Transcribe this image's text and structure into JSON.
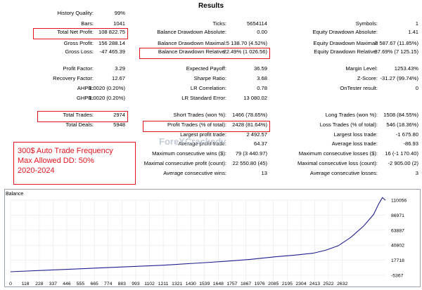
{
  "report": {
    "title": "Results"
  },
  "stats": [
    {
      "label": "History Quality:",
      "value": "99%",
      "lx": 133,
      "vx": 178,
      "y": 18
    },
    {
      "label": "Bars:",
      "value": "1041",
      "lx": 133,
      "vx": 178,
      "y": 33
    },
    {
      "label": "Total Net Profit:",
      "value": "108 822.75",
      "lx": 133,
      "vx": 178,
      "y": 45
    },
    {
      "label": "Gross Profit:",
      "value": "156 288.14",
      "lx": 133,
      "vx": 178,
      "y": 61
    },
    {
      "label": "Gross Loss:",
      "value": "-47 465.39",
      "lx": 133,
      "vx": 178,
      "y": 73
    },
    {
      "label": "Ticks:",
      "value": "5654114",
      "lx": 322,
      "vx": 380,
      "y": 33
    },
    {
      "label": "Balance Drawdown Absolute:",
      "value": "0.00",
      "lx": 322,
      "vx": 380,
      "y": 45
    },
    {
      "label": "Balance Drawdown Maximal:",
      "value": "5 138.70 (4.52%)",
      "lx": 322,
      "vx": 380,
      "y": 61
    },
    {
      "label": "Balance Drawdown Relative:",
      "value": "22.49% (1 026.56)",
      "lx": 322,
      "vx": 380,
      "y": 73
    },
    {
      "label": "Symbols:",
      "value": "1",
      "lx": 537,
      "vx": 595,
      "y": 33
    },
    {
      "label": "Equity Drawdown Absolute:",
      "value": "1.41",
      "lx": 537,
      "vx": 595,
      "y": 45
    },
    {
      "label": "Equity Drawdown Maximal:",
      "value": "8 587.67 (11.85%)",
      "lx": 537,
      "vx": 595,
      "y": 61
    },
    {
      "label": "Equity Drawdown Relative:",
      "value": "37.69% (7 125.15)",
      "lx": 537,
      "vx": 595,
      "y": 73
    },
    {
      "label": "Profit Factor:",
      "value": "3.29",
      "lx": 133,
      "vx": 178,
      "y": 97
    },
    {
      "label": "Recovery Factor:",
      "value": "12.67",
      "lx": 133,
      "vx": 178,
      "y": 111
    },
    {
      "label": "AHPR:",
      "value": "1.0020 (0.20%)",
      "lx": 133,
      "vx": 178,
      "y": 125
    },
    {
      "label": "GHPR:",
      "value": "1.0020 (0.20%)",
      "lx": 133,
      "vx": 178,
      "y": 139
    },
    {
      "label": "Expected Payoff:",
      "value": "36.59",
      "lx": 322,
      "vx": 380,
      "y": 97
    },
    {
      "label": "Sharpe Ratio:",
      "value": "3.68",
      "lx": 322,
      "vx": 380,
      "y": 111
    },
    {
      "label": "LR Correlation:",
      "value": "0.78",
      "lx": 322,
      "vx": 380,
      "y": 125
    },
    {
      "label": "LR Standard Error:",
      "value": "13 080.02",
      "lx": 322,
      "vx": 380,
      "y": 139
    },
    {
      "label": "Margin Level:",
      "value": "1253.43%",
      "lx": 537,
      "vx": 595,
      "y": 97
    },
    {
      "label": "Z-Score:",
      "value": "-31.27 (99.74%)",
      "lx": 537,
      "vx": 595,
      "y": 111
    },
    {
      "label": "OnTester result:",
      "value": "0",
      "lx": 537,
      "vx": 595,
      "y": 125
    },
    {
      "label": "Total Trades:",
      "value": "2974",
      "lx": 133,
      "vx": 178,
      "y": 163
    },
    {
      "label": "Total Deals:",
      "value": "5948",
      "lx": 133,
      "vx": 178,
      "y": 177
    },
    {
      "label": "Short Trades (won %):",
      "value": "1466 (78.65%)",
      "lx": 322,
      "vx": 380,
      "y": 163
    },
    {
      "label": "Profit Trades (% of total):",
      "value": "2428 (81.64%)",
      "lx": 322,
      "vx": 380,
      "y": 177
    },
    {
      "label": "Largest profit trade:",
      "value": "2 492.57",
      "lx": 322,
      "vx": 380,
      "y": 191
    },
    {
      "label": "Average profit trade:",
      "value": "64.37",
      "lx": 322,
      "vx": 380,
      "y": 204
    },
    {
      "label": "Maximum consecutive wins ($):",
      "value": "79 (3 440.97)",
      "lx": 322,
      "vx": 380,
      "y": 218
    },
    {
      "label": "Maximal consecutive profit (count):",
      "value": "22 550.80 (45)",
      "lx": 322,
      "vx": 380,
      "y": 232
    },
    {
      "label": "Average consecutive wins:",
      "value": "13",
      "lx": 322,
      "vx": 380,
      "y": 246
    },
    {
      "label": "Long Trades (won %):",
      "value": "1508 (84.55%)",
      "lx": 537,
      "vx": 595,
      "y": 163
    },
    {
      "label": "Loss Trades (% of total):",
      "value": "546 (18.36%)",
      "lx": 537,
      "vx": 595,
      "y": 177
    },
    {
      "label": "Largest loss trade:",
      "value": "-1 675.80",
      "lx": 537,
      "vx": 595,
      "y": 191
    },
    {
      "label": "Average loss trade:",
      "value": "-86.93",
      "lx": 537,
      "vx": 595,
      "y": 204
    },
    {
      "label": "Maximum consecutive losses ($):",
      "value": "16 (-1 170.40)",
      "lx": 537,
      "vx": 595,
      "y": 218
    },
    {
      "label": "Maximal consecutive loss (count):",
      "value": "-2 905.00 (2)",
      "lx": 537,
      "vx": 595,
      "y": 232
    },
    {
      "label": "Average consecutive losses:",
      "value": "3",
      "lx": 537,
      "vx": 595,
      "y": 246
    }
  ],
  "note": {
    "line1": "300$ Auto Trade Frequency",
    "line2": "Max Allowed DD: 50%",
    "line3": "2020-2024"
  },
  "watermark": "ForeXCrackedv",
  "colors": {
    "highlight": "#e0141e",
    "balance_line": "#1f1f8f"
  },
  "chart_data": {
    "type": "line",
    "title": "Balance",
    "x_ticks": [
      0,
      118,
      228,
      337,
      446,
      555,
      665,
      774,
      883,
      993,
      1102,
      1211,
      1321,
      1430,
      1539,
      1648,
      1757,
      1867,
      1976,
      2085,
      2195,
      2304,
      2413,
      2522,
      2632
    ],
    "y_ticks": [
      110056,
      86971,
      63887,
      40802,
      17718,
      -5367
    ],
    "ylim": [
      -5367,
      110056
    ],
    "xlim": [
      0,
      2974
    ],
    "x": [
      0,
      300,
      600,
      900,
      1200,
      1500,
      1700,
      1900,
      2100,
      2250,
      2400,
      2500,
      2600,
      2700,
      2800,
      2880,
      2920,
      2950,
      2974
    ],
    "y": [
      0,
      2500,
      5000,
      7500,
      10000,
      13500,
      16000,
      19000,
      23000,
      25500,
      28500,
      33000,
      40000,
      53000,
      70000,
      88000,
      104000,
      114000,
      110000
    ]
  }
}
